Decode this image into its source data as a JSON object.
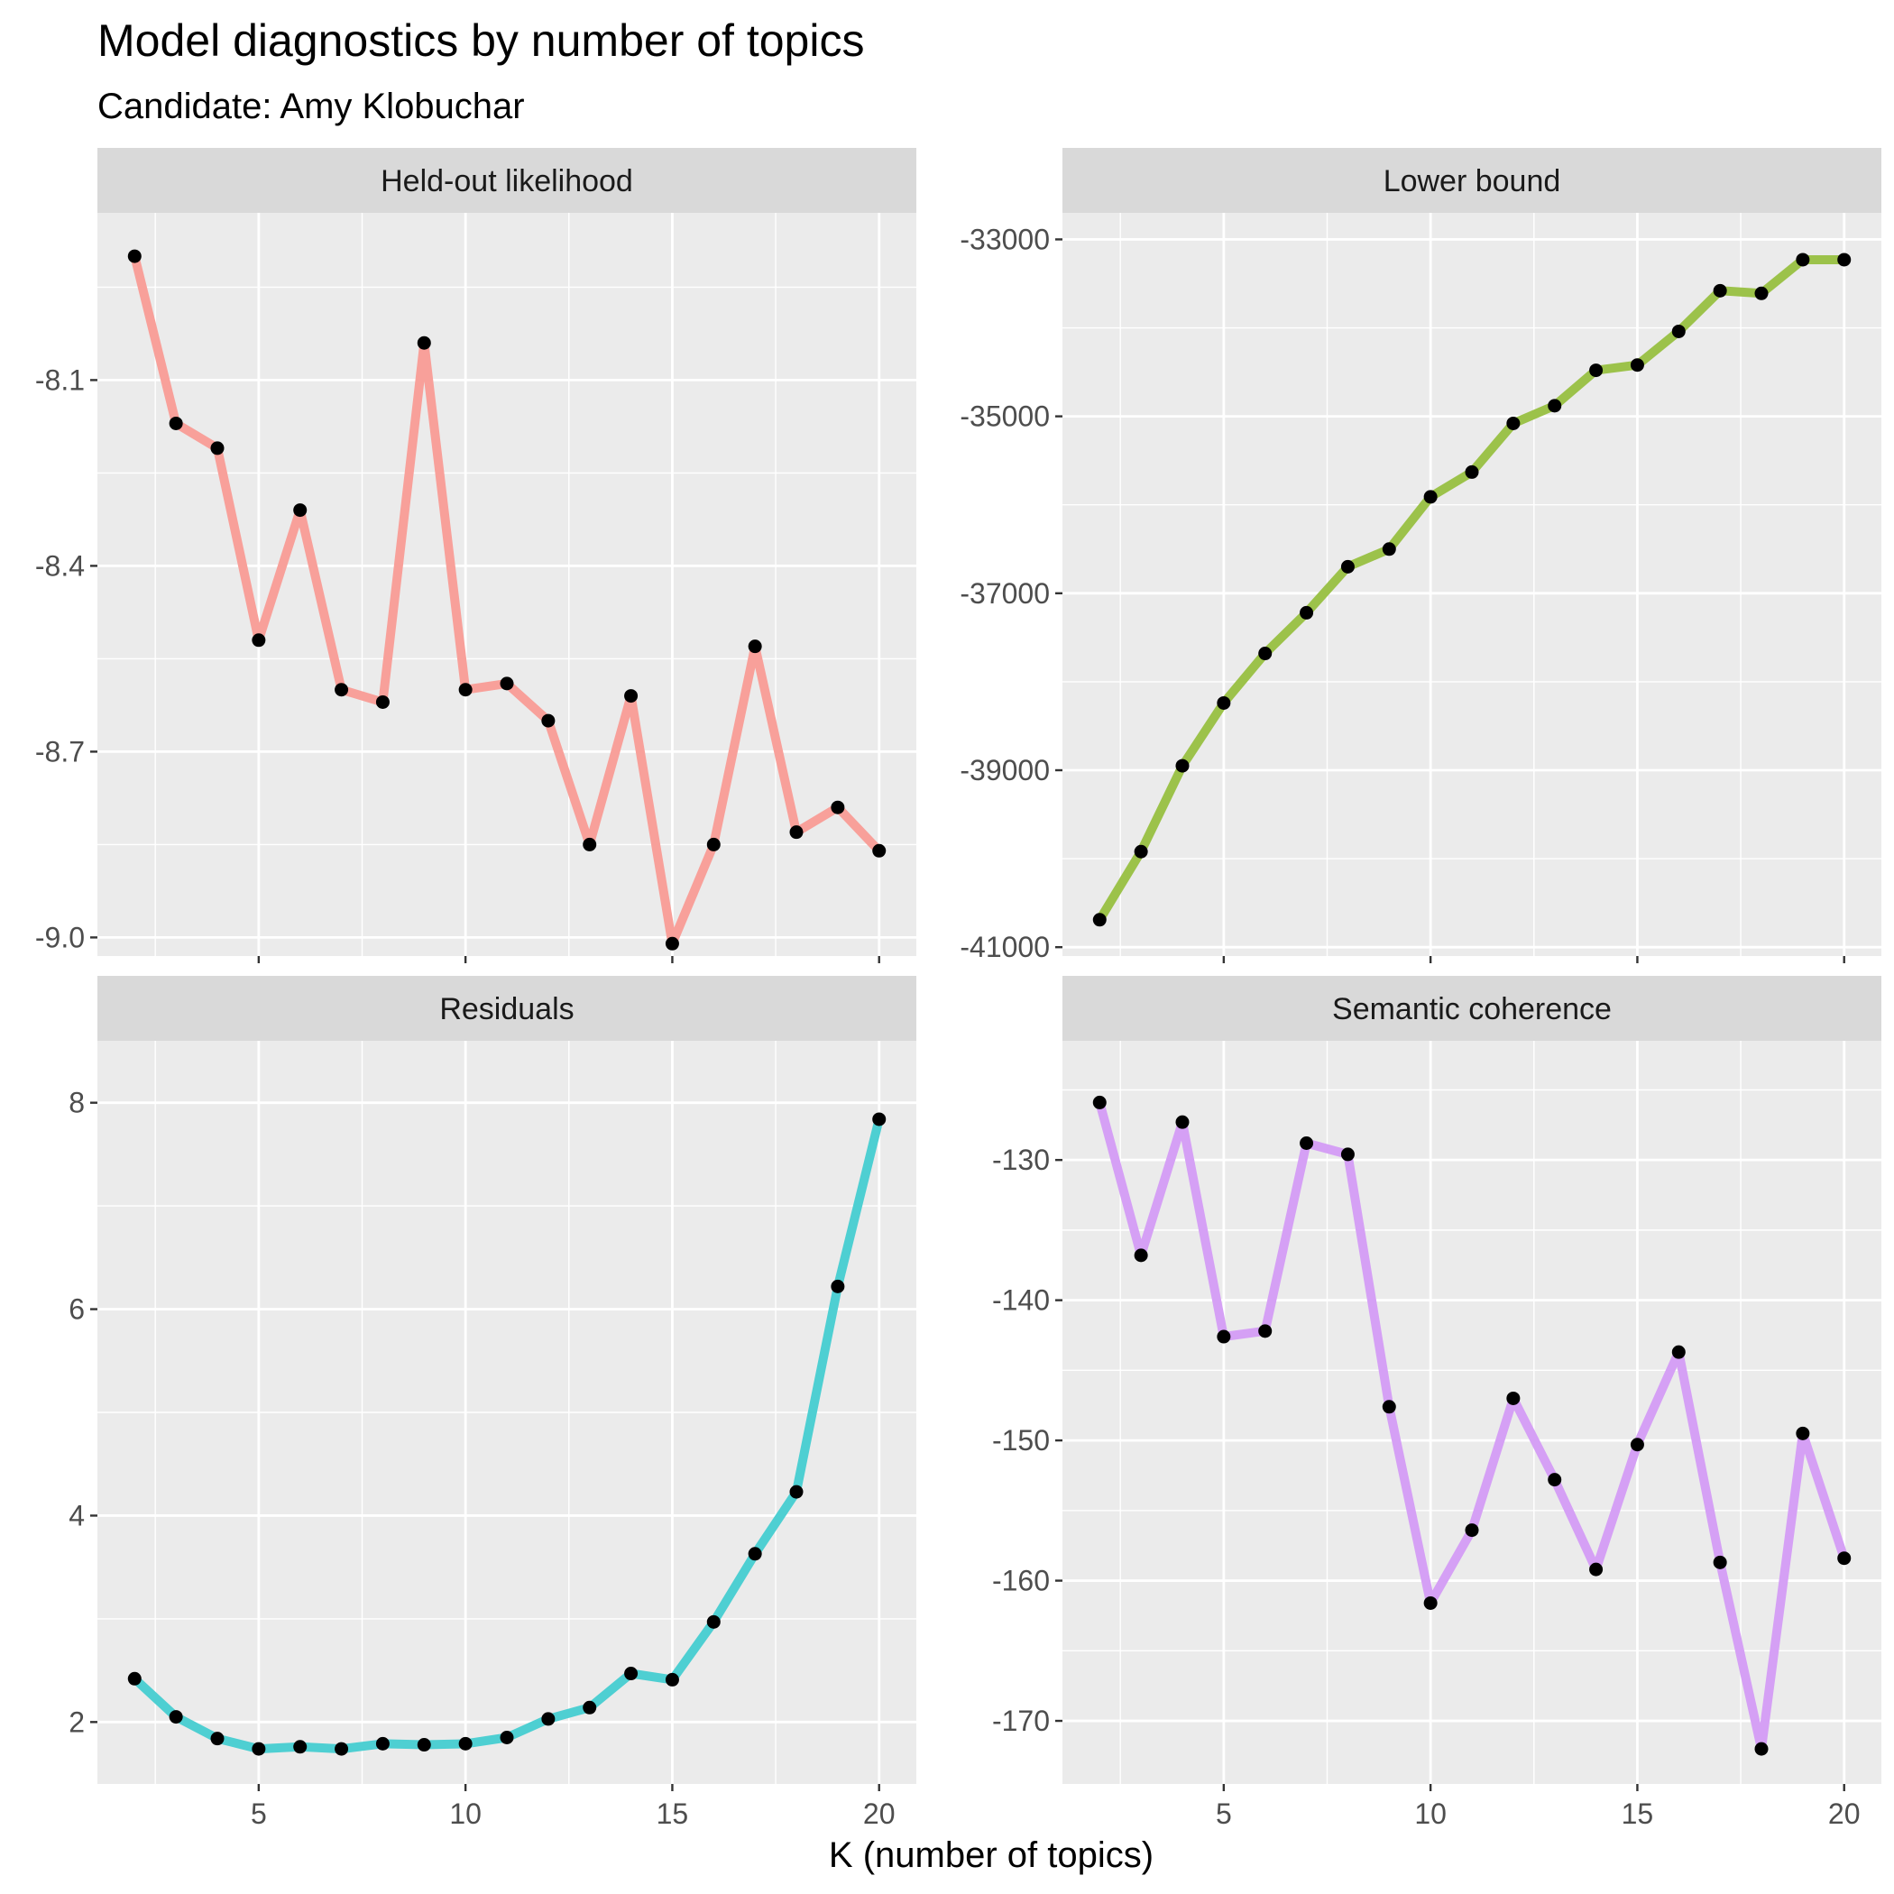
{
  "chart_data": {
    "type": "line",
    "title": "Model diagnostics by number of topics",
    "subtitle": "Candidate: Amy Klobuchar",
    "xlabel": "K (number of topics)",
    "x": [
      2,
      3,
      4,
      5,
      6,
      7,
      8,
      9,
      10,
      11,
      12,
      13,
      14,
      15,
      16,
      17,
      18,
      19,
      20
    ],
    "xlim": [
      1.1,
      20.9
    ],
    "xticks": [
      5,
      10,
      15,
      20
    ],
    "grid": true,
    "legend": "none",
    "panels": [
      {
        "strip": "Held-out likelihood",
        "color": "#F8A09A",
        "ylim": [
          -9.03,
          -7.83
        ],
        "yticks": [
          -9.0,
          -8.7,
          -8.4,
          -8.1
        ],
        "ytick_labels": [
          "-9.0",
          "-8.7",
          "-8.4",
          "-8.1"
        ],
        "values": [
          -7.9,
          -8.17,
          -8.21,
          -8.52,
          -8.31,
          -8.6,
          -8.62,
          -8.04,
          -8.6,
          -8.59,
          -8.65,
          -8.85,
          -8.61,
          -9.01,
          -8.85,
          -8.53,
          -8.83,
          -8.79,
          -8.86
        ]
      },
      {
        "strip": "Lower bound",
        "color": "#9CC24A",
        "ylim": [
          -41100,
          -32700
        ],
        "yticks": [
          -41000,
          -39000,
          -37000,
          -35000,
          -33000
        ],
        "ytick_labels": [
          "-41000",
          "-39000",
          "-37000",
          "-35000",
          "-33000"
        ],
        "values": [
          -40690,
          -39920,
          -38950,
          -38240,
          -37680,
          -37220,
          -36700,
          -36500,
          -35910,
          -35630,
          -35080,
          -34880,
          -34480,
          -34420,
          -34040,
          -33580,
          -33610,
          -33230,
          -33230
        ]
      },
      {
        "strip": "Residuals",
        "color": "#4ECFD2",
        "ylim": [
          1.4,
          8.6
        ],
        "yticks": [
          2,
          4,
          6,
          8
        ],
        "ytick_labels": [
          "2",
          "4",
          "6",
          "8"
        ],
        "values": [
          2.42,
          2.05,
          1.84,
          1.74,
          1.76,
          1.74,
          1.79,
          1.78,
          1.79,
          1.85,
          2.03,
          2.14,
          2.47,
          2.41,
          2.97,
          3.63,
          4.23,
          6.22,
          7.84
        ]
      },
      {
        "strip": "Semantic coherence",
        "color": "#D5A0F5",
        "ylim": [
          -174.5,
          -121.5
        ],
        "yticks": [
          -170,
          -160,
          -150,
          -140,
          -130
        ],
        "ytick_labels": [
          "-170",
          "-160",
          "-150",
          "-140",
          "-130"
        ],
        "values": [
          -125.9,
          -136.8,
          -127.3,
          -142.6,
          -142.2,
          -128.8,
          -129.6,
          -147.6,
          -161.6,
          -156.4,
          -147.0,
          -152.8,
          -159.2,
          -150.3,
          -143.7,
          -158.7,
          -172.0,
          -149.5,
          -158.4
        ]
      }
    ]
  }
}
